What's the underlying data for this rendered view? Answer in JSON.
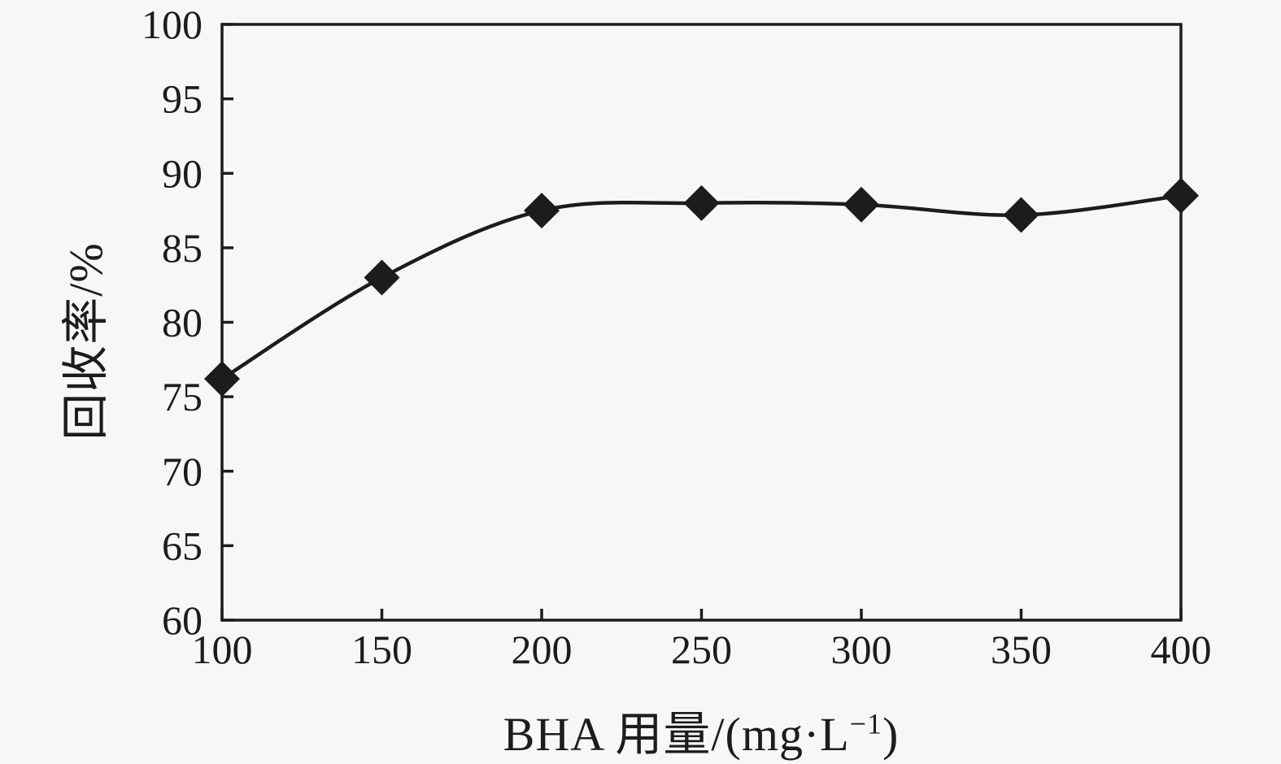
{
  "figure": {
    "background_color": "#f7f7f6",
    "ink_color": "#1c1c1c"
  },
  "chart_data": {
    "type": "line",
    "series": [
      {
        "name": "回收率",
        "x": [
          100,
          150,
          200,
          250,
          300,
          350,
          400
        ],
        "values": [
          76.2,
          83.0,
          87.5,
          88.0,
          87.9,
          87.2,
          88.5
        ]
      }
    ],
    "title": "",
    "xlabel": "BHA 用量/(mg·L⁻¹)",
    "xlabel_parts": {
      "main": "BHA 用量/(mg·L",
      "sup": "−1",
      "close": ")"
    },
    "ylabel": "回收率/%",
    "xlim": [
      100,
      400
    ],
    "ylim": [
      60,
      100
    ],
    "x_ticks": [
      100,
      150,
      200,
      250,
      300,
      350,
      400
    ],
    "y_ticks": [
      60,
      65,
      70,
      75,
      80,
      85,
      90,
      95,
      100
    ],
    "grid": false,
    "legend": false,
    "marker": "diamond",
    "line_smooth": true,
    "line_color": "#1c1c1c",
    "marker_color": "#1c1c1c"
  }
}
